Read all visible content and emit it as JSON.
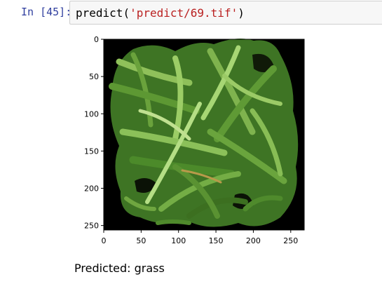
{
  "cell": {
    "prompt": "In [45]:",
    "code": {
      "fn": "predict",
      "open_paren": "(",
      "arg": "'predict/69.tif'",
      "close_paren": ")"
    }
  },
  "figure": {
    "image_name": "leafy-grass-image",
    "y_ticks": [
      "0",
      "50",
      "100",
      "150",
      "200",
      "250"
    ],
    "x_ticks": [
      "0",
      "50",
      "100",
      "150",
      "200",
      "250"
    ]
  },
  "output": {
    "text": "Predicted: grass"
  },
  "colors": {
    "prompt": "#303f9f",
    "string": "#ba2121",
    "image_background": "#000000",
    "leaf_dark": "#2f5a1c",
    "leaf_mid": "#4c8a2a",
    "leaf_light": "#8fc05a"
  }
}
